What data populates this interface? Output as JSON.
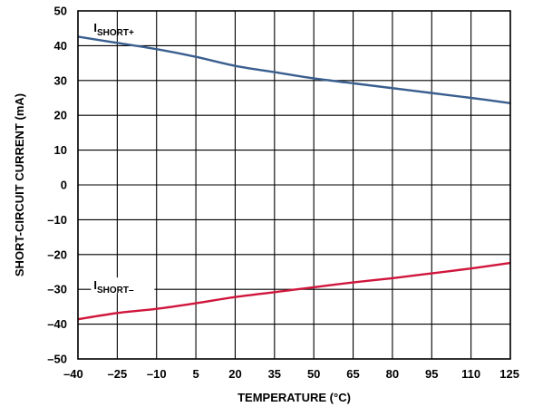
{
  "chart_data": {
    "type": "line",
    "title": "",
    "xlabel": "TEMPERATURE (°C)",
    "ylabel": "SHORT-CIRCUIT CURRENT (mA)",
    "xlim": [
      -40,
      125
    ],
    "ylim": [
      -50,
      50
    ],
    "x_ticks": [
      -40,
      -25,
      -10,
      5,
      20,
      35,
      50,
      65,
      80,
      95,
      110,
      125
    ],
    "x_tick_labels": [
      "–40",
      "–25",
      "–10",
      "5",
      "20",
      "35",
      "50",
      "65",
      "80",
      "95",
      "110",
      "125"
    ],
    "y_ticks": [
      50,
      40,
      30,
      20,
      10,
      0,
      -10,
      -20,
      -30,
      -40,
      -50
    ],
    "y_tick_labels": [
      "50",
      "40",
      "30",
      "20",
      "10",
      "0",
      "–10",
      "–20",
      "–30",
      "–40",
      "–50"
    ],
    "grid": true,
    "legend": "none",
    "series": [
      {
        "label_main": "I",
        "label_sub": "SHORT+",
        "color": "#3a5f8f",
        "x": [
          -40,
          -25,
          -10,
          5,
          20,
          35,
          50,
          65,
          80,
          95,
          110,
          125
        ],
        "y": [
          42.6,
          40.8,
          39.0,
          36.8,
          34.2,
          32.4,
          30.6,
          29.2,
          27.8,
          26.4,
          25.0,
          23.5
        ]
      },
      {
        "label_main": "I",
        "label_sub": "SHORT–",
        "color": "#d0163c",
        "x": [
          -40,
          -25,
          -10,
          5,
          20,
          35,
          50,
          65,
          80,
          95,
          110,
          125
        ],
        "y": [
          -38.6,
          -36.8,
          -35.6,
          -34.0,
          -32.2,
          -30.8,
          -29.4,
          -28.0,
          -26.8,
          -25.4,
          -24.0,
          -22.4
        ]
      }
    ]
  }
}
